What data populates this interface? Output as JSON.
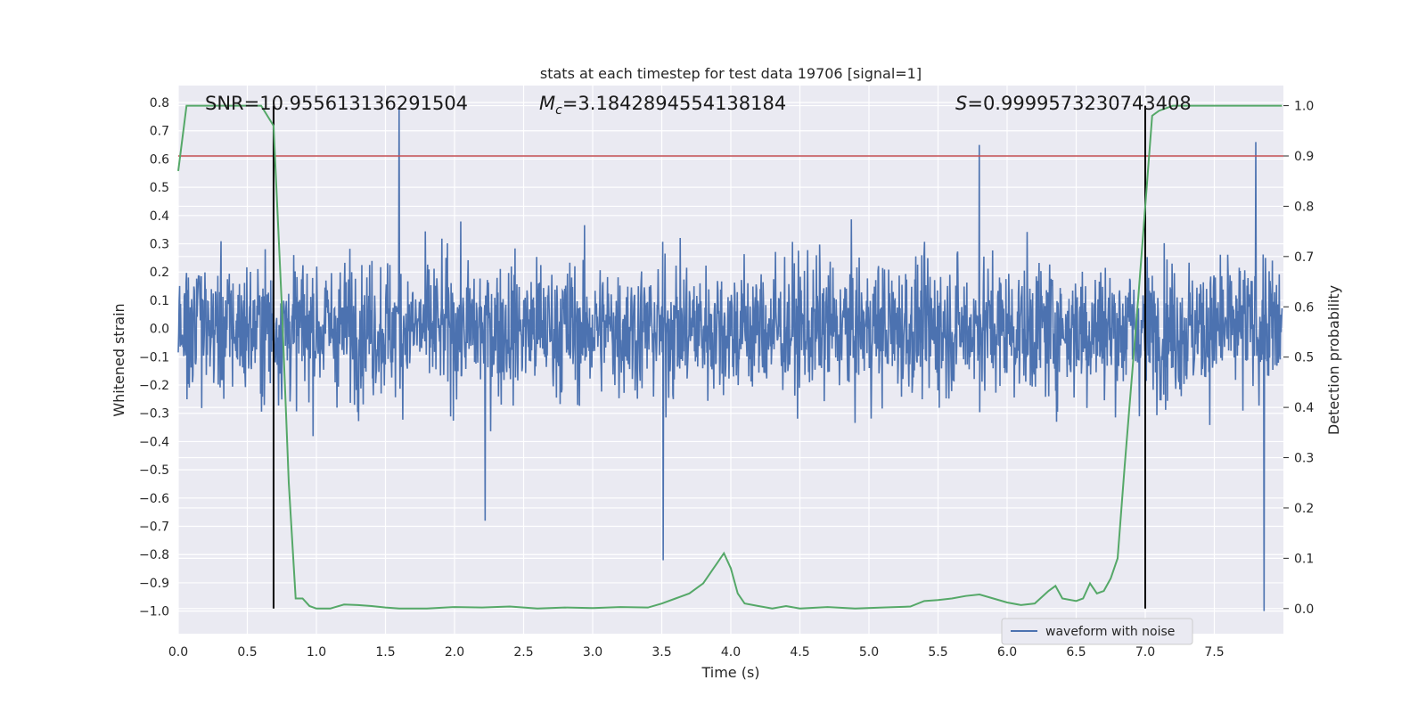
{
  "chart_data": {
    "type": "line",
    "title": "stats at each timestep for test data 19706 [signal=1]",
    "xlabel": "Time (s)",
    "ylabel_left": "Whitened strain",
    "ylabel_right": "Detection probability",
    "xlim": [
      0.0,
      8.0
    ],
    "ylim_left": [
      -1.08,
      0.86
    ],
    "ylim_right": [
      -0.05,
      1.04
    ],
    "xticks": [
      "0.0",
      "0.5",
      "1.0",
      "1.5",
      "2.0",
      "2.5",
      "3.0",
      "3.5",
      "4.0",
      "4.5",
      "5.0",
      "5.5",
      "6.0",
      "6.5",
      "7.0",
      "7.5"
    ],
    "yticks_left": [
      "0.8",
      "0.7",
      "0.6",
      "0.5",
      "0.4",
      "0.3",
      "0.2",
      "0.1",
      "0.0",
      "-0.1",
      "-0.2",
      "-0.3",
      "-0.4",
      "-0.5",
      "-0.6",
      "-0.7",
      "-0.8",
      "-0.9",
      "-1.0"
    ],
    "yticks_right": [
      "1.0",
      "0.9",
      "0.8",
      "0.7",
      "0.6",
      "0.5",
      "0.4",
      "0.3",
      "0.2",
      "0.1",
      "0.0"
    ],
    "annotations": {
      "snr": "SNR=10.955613136291504",
      "mc_symbol": "M",
      "mc_sub": "c",
      "mc_value": "=3.1842894554138184",
      "s_symbol": "S",
      "s_value": "=0.9999573230743408"
    },
    "threshold": 0.9,
    "vertical_lines_x": [
      0.69,
      7.0
    ],
    "series": [
      {
        "name": "waveform with noise",
        "axis": "left",
        "color": "#4c72b0",
        "description": "whitened strain noise, peaks roughly ±0.5, extremes 0.78 and -1.0",
        "notable_peaks": [
          [
            1.6,
            0.78
          ],
          [
            7.86,
            -1.0
          ],
          [
            3.51,
            -0.82
          ],
          [
            7.8,
            0.66
          ],
          [
            2.22,
            -0.68
          ],
          [
            5.8,
            0.65
          ]
        ]
      },
      {
        "name": "detection probability",
        "axis": "right",
        "color": "#55a868",
        "x": [
          0.0,
          0.06,
          0.15,
          0.3,
          0.45,
          0.6,
          0.69,
          0.75,
          0.8,
          0.85,
          0.9,
          0.95,
          1.0,
          1.1,
          1.2,
          1.3,
          1.4,
          1.5,
          1.6,
          1.8,
          2.0,
          2.2,
          2.4,
          2.6,
          2.8,
          3.0,
          3.2,
          3.4,
          3.5,
          3.6,
          3.7,
          3.8,
          3.9,
          3.95,
          4.0,
          4.05,
          4.1,
          4.2,
          4.3,
          4.4,
          4.5,
          4.7,
          4.9,
          5.1,
          5.3,
          5.4,
          5.5,
          5.6,
          5.7,
          5.8,
          5.9,
          6.0,
          6.1,
          6.2,
          6.3,
          6.35,
          6.4,
          6.5,
          6.55,
          6.6,
          6.65,
          6.7,
          6.75,
          6.8,
          6.85,
          6.9,
          6.95,
          7.0,
          7.05,
          7.1,
          7.15,
          7.2,
          7.3,
          7.5,
          7.7,
          7.99
        ],
        "y": [
          0.87,
          1.0,
          1.0,
          1.0,
          1.0,
          1.0,
          0.96,
          0.6,
          0.25,
          0.02,
          0.02,
          0.005,
          0.0,
          0.0,
          0.008,
          0.007,
          0.005,
          0.002,
          0.0,
          0.0,
          0.003,
          0.002,
          0.004,
          0.0,
          0.002,
          0.001,
          0.003,
          0.002,
          0.01,
          0.02,
          0.03,
          0.05,
          0.09,
          0.11,
          0.08,
          0.03,
          0.01,
          0.005,
          0.0,
          0.005,
          0.0,
          0.003,
          0.0,
          0.002,
          0.004,
          0.015,
          0.017,
          0.02,
          0.025,
          0.028,
          0.02,
          0.012,
          0.007,
          0.01,
          0.035,
          0.045,
          0.02,
          0.015,
          0.02,
          0.05,
          0.03,
          0.035,
          0.06,
          0.1,
          0.28,
          0.45,
          0.62,
          0.8,
          0.98,
          0.99,
          0.995,
          1.0,
          1.0,
          1.0,
          1.0,
          1.0
        ]
      }
    ],
    "threshold_color": "#c44e52",
    "legend": [
      "waveform with noise"
    ]
  }
}
